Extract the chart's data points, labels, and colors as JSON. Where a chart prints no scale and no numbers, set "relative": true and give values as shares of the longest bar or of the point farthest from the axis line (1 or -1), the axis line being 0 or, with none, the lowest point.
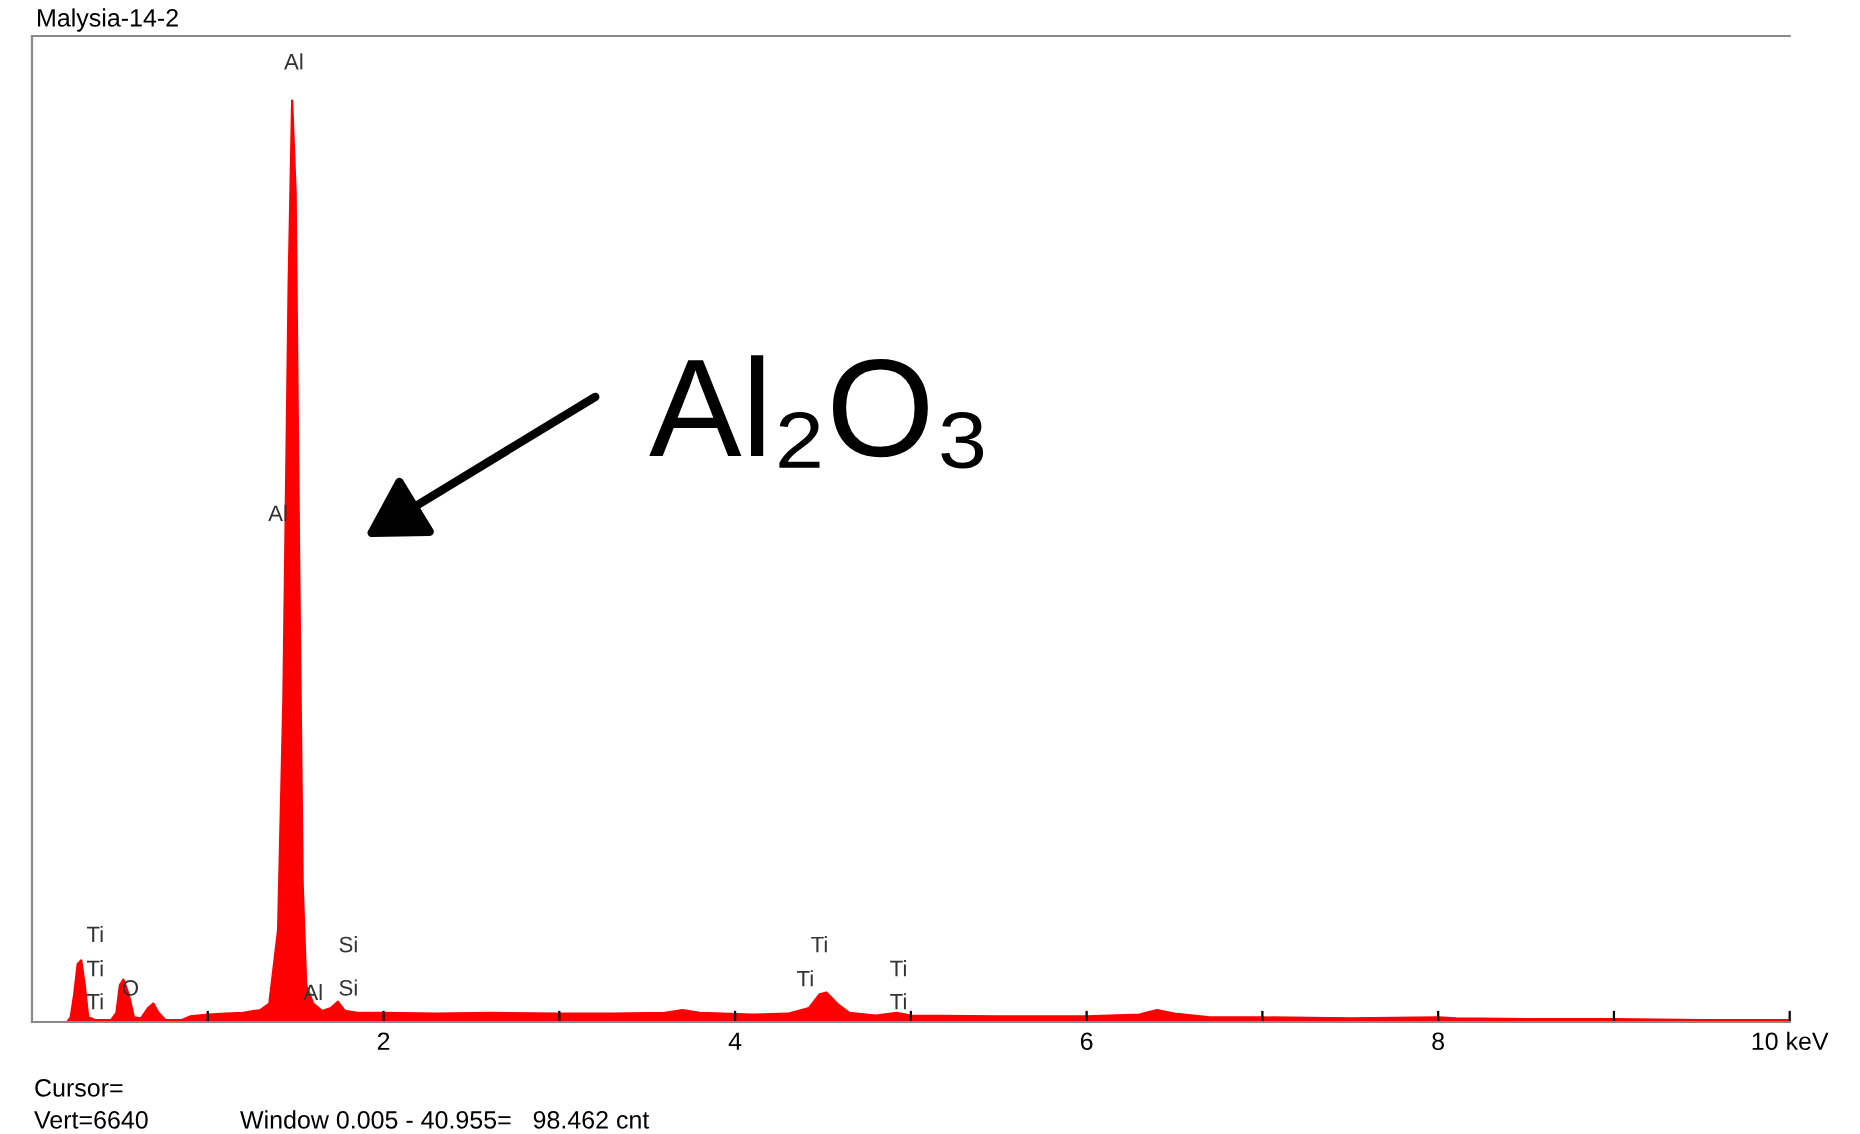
{
  "chart_data": {
    "type": "area",
    "relative": true,
    "title": "Malysia-14-2",
    "x": [
      0.2,
      0.22,
      0.24,
      0.26,
      0.28,
      0.3,
      0.32,
      0.36,
      0.45,
      0.48,
      0.5,
      0.52,
      0.55,
      0.58,
      0.62,
      0.66,
      0.69,
      0.72,
      0.76,
      0.85,
      0.9,
      1.0,
      1.1,
      1.2,
      1.3,
      1.35,
      1.4,
      1.43,
      1.46,
      1.48,
      1.5,
      1.52,
      1.54,
      1.56,
      1.6,
      1.65,
      1.7,
      1.74,
      1.78,
      1.85,
      2.0,
      2.3,
      2.6,
      3.0,
      3.3,
      3.6,
      3.7,
      3.8,
      4.1,
      4.3,
      4.42,
      4.48,
      4.52,
      4.58,
      4.65,
      4.8,
      4.92,
      5.0,
      5.5,
      6.0,
      6.3,
      6.4,
      6.5,
      6.7,
      7.0,
      7.5,
      8.0,
      8.1,
      8.5,
      9.0,
      9.5,
      10.0
    ],
    "values": [
      0,
      0.005,
      0.03,
      0.063,
      0.067,
      0.04,
      0.005,
      0.002,
      0.002,
      0.01,
      0.04,
      0.046,
      0.03,
      0.005,
      0.004,
      0.015,
      0.02,
      0.01,
      0.002,
      0.002,
      0.006,
      0.008,
      0.009,
      0.01,
      0.013,
      0.02,
      0.1,
      0.35,
      0.8,
      1.0,
      0.9,
      0.5,
      0.15,
      0.04,
      0.02,
      0.012,
      0.015,
      0.022,
      0.012,
      0.01,
      0.01,
      0.009,
      0.01,
      0.009,
      0.009,
      0.01,
      0.013,
      0.01,
      0.008,
      0.009,
      0.015,
      0.03,
      0.032,
      0.02,
      0.01,
      0.007,
      0.01,
      0.007,
      0.006,
      0.006,
      0.008,
      0.013,
      0.009,
      0.005,
      0.005,
      0.004,
      0.005,
      0.004,
      0.003,
      0.003,
      0.002,
      0.002
    ],
    "color": "#ff0000",
    "xlim": [
      0,
      10
    ],
    "xticks": [
      {
        "value": 1,
        "label": null
      },
      2,
      {
        "value": 3,
        "label": null
      },
      4,
      {
        "value": 5,
        "label": null
      },
      6,
      {
        "value": 7,
        "label": null
      },
      8,
      {
        "value": 9,
        "label": null
      },
      {
        "value": 10,
        "label": "10 keV"
      }
    ],
    "tick_labels": "x",
    "grid": false,
    "annotations": [
      "Ti",
      "Ti",
      "Ti",
      "O",
      "Al",
      "Al",
      "Al",
      "Si",
      "Si",
      "Ti",
      "Ti",
      "Ti",
      "Ti",
      "Al₂O₃",
      "Cursor=",
      "Vert=6640",
      "Window 0.005 - 40.955=   98.462 cnt"
    ]
  }
}
